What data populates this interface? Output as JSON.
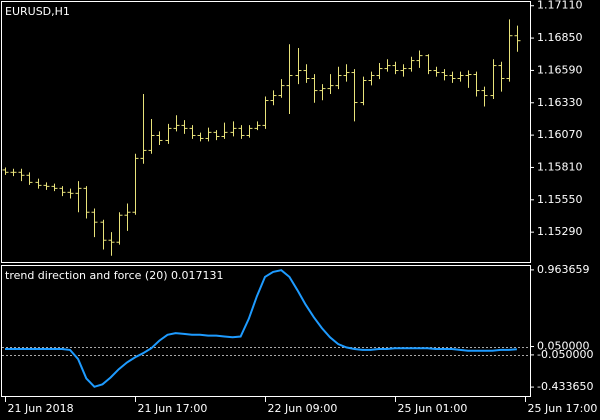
{
  "chart_data": [
    {
      "type": "ohlc",
      "title": "EURUSD,H1",
      "color": "#e8e27a",
      "categories": [
        "21 Jun 2018",
        null,
        null,
        null,
        null,
        null,
        null,
        null,
        null,
        null,
        null,
        null,
        null,
        null,
        null,
        null,
        "21 Jun 17:00",
        null,
        null,
        null,
        null,
        null,
        null,
        null,
        null,
        null,
        null,
        null,
        null,
        null,
        null,
        null,
        "22 Jun 09:00",
        null,
        null,
        null,
        null,
        null,
        null,
        null,
        null,
        null,
        null,
        null,
        null,
        null,
        null,
        null,
        "25 Jun 01:00",
        null,
        null,
        null,
        null,
        null,
        null,
        null,
        null,
        null,
        null,
        null,
        null,
        null,
        null,
        null,
        "25 Jun 17:00"
      ],
      "open": [
        1.1579,
        1.15771,
        1.15771,
        1.15747,
        1.1569,
        1.15666,
        1.15658,
        1.15642,
        1.1561,
        1.15602,
        1.15642,
        1.1545,
        1.1537,
        1.15225,
        1.15209,
        1.15426,
        1.1545,
        1.15883,
        1.15947,
        1.16067,
        1.16027,
        1.16124,
        1.16148,
        1.16124,
        1.16067,
        1.16043,
        1.16092,
        1.16059,
        1.16092,
        1.16124,
        1.16067,
        1.16124,
        1.16148,
        1.16348,
        1.16388,
        1.16468,
        1.16549,
        1.16589,
        1.16525,
        1.16428,
        1.16444,
        1.16468,
        1.16549,
        1.16573,
        1.16332,
        1.16509,
        1.16549,
        1.16605,
        1.16629,
        1.16589,
        1.16605,
        1.16669,
        1.16709,
        1.16589,
        1.16573,
        1.16549,
        1.16525,
        1.16549,
        1.16557,
        1.16428,
        1.16388,
        1.16629,
        1.16525,
        1.16869,
        null
      ],
      "high": [
        1.1581,
        1.158,
        1.158,
        1.1577,
        1.1572,
        1.1569,
        1.1568,
        1.1566,
        1.1564,
        1.157,
        1.1566,
        1.1548,
        1.1539,
        1.1529,
        1.1545,
        1.1552,
        1.1592,
        1.164,
        1.162,
        1.161,
        1.1616,
        1.1623,
        1.1619,
        1.1615,
        1.1609,
        1.1613,
        1.1611,
        1.1617,
        1.1618,
        1.1615,
        1.1615,
        1.1618,
        1.1638,
        1.1643,
        1.1652,
        1.168,
        1.1677,
        1.1664,
        1.1656,
        1.1648,
        1.1656,
        1.1662,
        1.1664,
        1.166,
        1.1654,
        1.1658,
        1.1665,
        1.1668,
        1.1666,
        1.1664,
        1.167,
        1.1675,
        1.1672,
        1.1662,
        1.166,
        1.1658,
        1.1658,
        1.1659,
        1.1658,
        1.1646,
        1.1668,
        1.1666,
        1.17,
        1.1695,
        null
      ],
      "low": [
        1.1575,
        1.1574,
        1.157,
        1.1567,
        1.1564,
        1.1563,
        1.1562,
        1.1558,
        1.1556,
        1.1545,
        1.154,
        1.1525,
        1.1515,
        1.151,
        1.1519,
        1.153,
        1.1543,
        1.1584,
        1.1592,
        1.1599,
        1.16,
        1.161,
        1.1608,
        1.1604,
        1.1602,
        1.1602,
        1.1603,
        1.1604,
        1.1606,
        1.1604,
        1.1605,
        1.1611,
        1.1612,
        1.1631,
        1.1637,
        1.1624,
        1.1648,
        1.1649,
        1.1633,
        1.1635,
        1.164,
        1.1644,
        1.165,
        1.1618,
        1.1631,
        1.1647,
        1.1652,
        1.1658,
        1.1656,
        1.1654,
        1.1658,
        1.1661,
        1.1656,
        1.1654,
        1.1651,
        1.1649,
        1.165,
        1.1645,
        1.1638,
        1.163,
        1.1636,
        1.1642,
        1.165,
        1.1674,
        null
      ],
      "close": [
        1.15771,
        1.15771,
        1.15747,
        1.1569,
        1.15666,
        1.15658,
        1.15642,
        1.1561,
        1.15602,
        1.15642,
        1.1545,
        1.1537,
        1.15225,
        1.15209,
        1.15426,
        1.1545,
        1.15883,
        1.15947,
        1.16067,
        1.16027,
        1.16124,
        1.16148,
        1.16124,
        1.16067,
        1.16043,
        1.16092,
        1.16059,
        1.16092,
        1.16124,
        1.16067,
        1.16124,
        1.16148,
        1.16348,
        1.16388,
        1.16468,
        1.16549,
        1.16589,
        1.16525,
        1.16428,
        1.16444,
        1.16468,
        1.16549,
        1.16573,
        1.16332,
        1.16509,
        1.16549,
        1.16605,
        1.16629,
        1.16589,
        1.16605,
        1.16669,
        1.16709,
        1.16589,
        1.16573,
        1.16549,
        1.16525,
        1.16549,
        1.16557,
        1.16428,
        1.16388,
        1.16629,
        1.16525,
        1.16869,
        1.16829,
        null
      ],
      "ylim": [
        1.1505,
        1.1714
      ],
      "yticks": [
        {
          "value": 1.1711,
          "label": "1.17110"
        },
        {
          "value": 1.1685,
          "label": "1.16850"
        },
        {
          "value": 1.1659,
          "label": "1.16590"
        },
        {
          "value": 1.1633,
          "label": "1.16330"
        },
        {
          "value": 1.1607,
          "label": "1.16070"
        },
        {
          "value": 1.1581,
          "label": "1.15810"
        },
        {
          "value": 1.1555,
          "label": "1.15550"
        },
        {
          "value": 1.1529,
          "label": "1.15290"
        }
      ]
    },
    {
      "type": "line",
      "title": "trend direction and force (20) 0.017131",
      "color": "#1e9bff",
      "values": [
        0.02,
        0.02,
        0.02,
        0.02,
        0.02,
        0.02,
        0.02,
        0.02,
        0.01,
        -0.1,
        -0.33,
        -0.43,
        -0.4,
        -0.32,
        -0.22,
        -0.14,
        -0.08,
        -0.03,
        0.03,
        0.12,
        0.19,
        0.21,
        0.2,
        0.19,
        0.19,
        0.18,
        0.18,
        0.17,
        0.16,
        0.17,
        0.38,
        0.65,
        0.88,
        0.94,
        0.96,
        0.88,
        0.72,
        0.55,
        0.4,
        0.27,
        0.16,
        0.08,
        0.04,
        0.02,
        0.01,
        0.01,
        0.02,
        0.02,
        0.03,
        0.03,
        0.03,
        0.03,
        0.03,
        0.02,
        0.02,
        0.02,
        0.01,
        0,
        0,
        0,
        0,
        0.01,
        0.01,
        0.017131,
        null
      ],
      "ylim": [
        -0.54,
        1.01
      ],
      "yticks": [
        {
          "value": 0.963659,
          "label": "0.963659"
        },
        {
          "value": 0.05,
          "label": "0.050000"
        },
        {
          "value": -0.05,
          "label": "-0.050000"
        },
        {
          "value": -0.43365,
          "label": "-0.433650"
        }
      ]
    }
  ]
}
